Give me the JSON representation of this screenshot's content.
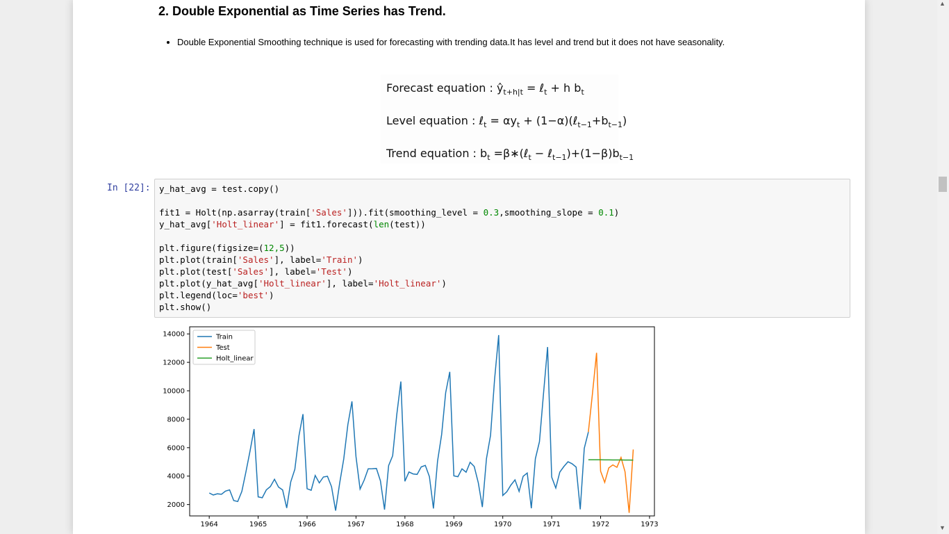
{
  "section": {
    "heading": "2. Double Exponential as Time Series has Trend.",
    "bullet": "Double Exponential Smoothing technique is used for forecasting with trending data.It has level and trend but it does not have seasonality."
  },
  "formulas": {
    "forecast_label": "Forecast equation : ",
    "forecast_y": "ŷ",
    "forecast_y_sub": "t+h|t",
    "forecast_mid": " = ℓ",
    "forecast_l_sub": "t",
    "forecast_tail": " + h b",
    "forecast_b_sub": "t",
    "level_label": "Level equation : ℓ",
    "level_l_sub": "t",
    "level_mid": " = αy",
    "level_y_sub": "t",
    "level_mid2": " + (1−α)(ℓ",
    "level_l1_sub": "t−1",
    "level_plus": "+b",
    "level_b1_sub": "t−1",
    "level_close": ")",
    "trend_label": "Trend equation : b",
    "trend_b_sub": "t",
    "trend_mid": " =β∗(ℓ",
    "trend_l_sub": "t",
    "trend_minus": " − ℓ",
    "trend_l1_sub": "t−1",
    "trend_mid2": ")+(1−β)b",
    "trend_b1_sub": "t−1"
  },
  "cell": {
    "prompt": "In [22]:",
    "c1": "y_hat_avg = test.copy()",
    "c2a": "fit1 = Holt(np.asarray(train[",
    "c2s": "'Sales'",
    "c2b": "])).fit(smoothing_level = ",
    "c2n1": "0.3",
    "c2c": ",smoothing_slope = ",
    "c2n2": "0.1",
    "c2d": ")",
    "c3a": "y_hat_avg[",
    "c3s": "'Holt_linear'",
    "c3b": "] = fit1.forecast(",
    "c3len": "len",
    "c3c": "(test))",
    "c4a": "plt.figure(figsize=(",
    "c4n": "12,5",
    "c4b": "))",
    "c5a": "plt.plot(train[",
    "c5s": "'Sales'",
    "c5b": "], label=",
    "c5s2": "'Train'",
    "c5c": ")",
    "c6a": "plt.plot(test[",
    "c6s": "'Sales'",
    "c6b": "], label=",
    "c6s2": "'Test'",
    "c6c": ")",
    "c7a": "plt.plot(y_hat_avg[",
    "c7s": "'Holt_linear'",
    "c7b": "], label=",
    "c7s2": "'Holt_linear'",
    "c7c": ")",
    "c8a": "plt.legend(loc=",
    "c8s": "'best'",
    "c8b": ")",
    "c9": "plt.show()"
  },
  "chart_data": {
    "type": "line",
    "title": "",
    "xlabel": "",
    "ylabel": "",
    "xlim": [
      1963.6,
      1973.1
    ],
    "ylim": [
      1200,
      14500
    ],
    "xticks": [
      1964,
      1965,
      1966,
      1967,
      1968,
      1969,
      1970,
      1971,
      1972,
      1973
    ],
    "yticks": [
      2000,
      4000,
      6000,
      8000,
      10000,
      12000,
      14000
    ],
    "grid": false,
    "legend": "top-left",
    "series": [
      {
        "name": "Train",
        "color": "#1f77b4",
        "x_start": 1964.0,
        "x_step": 0.08333,
        "values": [
          2815,
          2672,
          2755,
          2721,
          2946,
          3036,
          2282,
          2212,
          2922,
          4301,
          5764,
          7312,
          2541,
          2475,
          3031,
          3266,
          3776,
          3230,
          3028,
          1759,
          3595,
          4474,
          6838,
          8357,
          3113,
          3006,
          4047,
          3523,
          3937,
          3986,
          3260,
          1573,
          3528,
          5211,
          7614,
          9254,
          5375,
          3088,
          3718,
          4514,
          4520,
          4539,
          3663,
          1643,
          4739,
          5428,
          8314,
          10651,
          3633,
          4292,
          4154,
          4121,
          4647,
          4753,
          3965,
          1723,
          5048,
          6922,
          9858,
          11331,
          4016,
          3957,
          4510,
          4276,
          4968,
          4677,
          3523,
          1821,
          5222,
          6872,
          10803,
          13916,
          2639,
          2899,
          3370,
          3740,
          2927,
          3986,
          4217,
          1738,
          5221,
          6424,
          9842,
          13076,
          3934,
          3162,
          4286,
          4676,
          5010,
          4874,
          4633,
          1659,
          5951,
          7100
        ]
      },
      {
        "name": "Test",
        "color": "#ff7f0e",
        "x_start": 1971.75,
        "x_step": 0.08333,
        "values": [
          7100,
          9800,
          12670,
          4348,
          3564,
          4577,
          4788,
          4618,
          5312,
          4298,
          1413,
          5877
        ]
      },
      {
        "name": "Holt_linear",
        "color": "#2ca02c",
        "x_start": 1971.75,
        "x_step": 0.08333,
        "values": [
          5150,
          5148,
          5146,
          5144,
          5142,
          5140,
          5138,
          5136,
          5134,
          5132,
          5130,
          5128
        ]
      }
    ]
  }
}
